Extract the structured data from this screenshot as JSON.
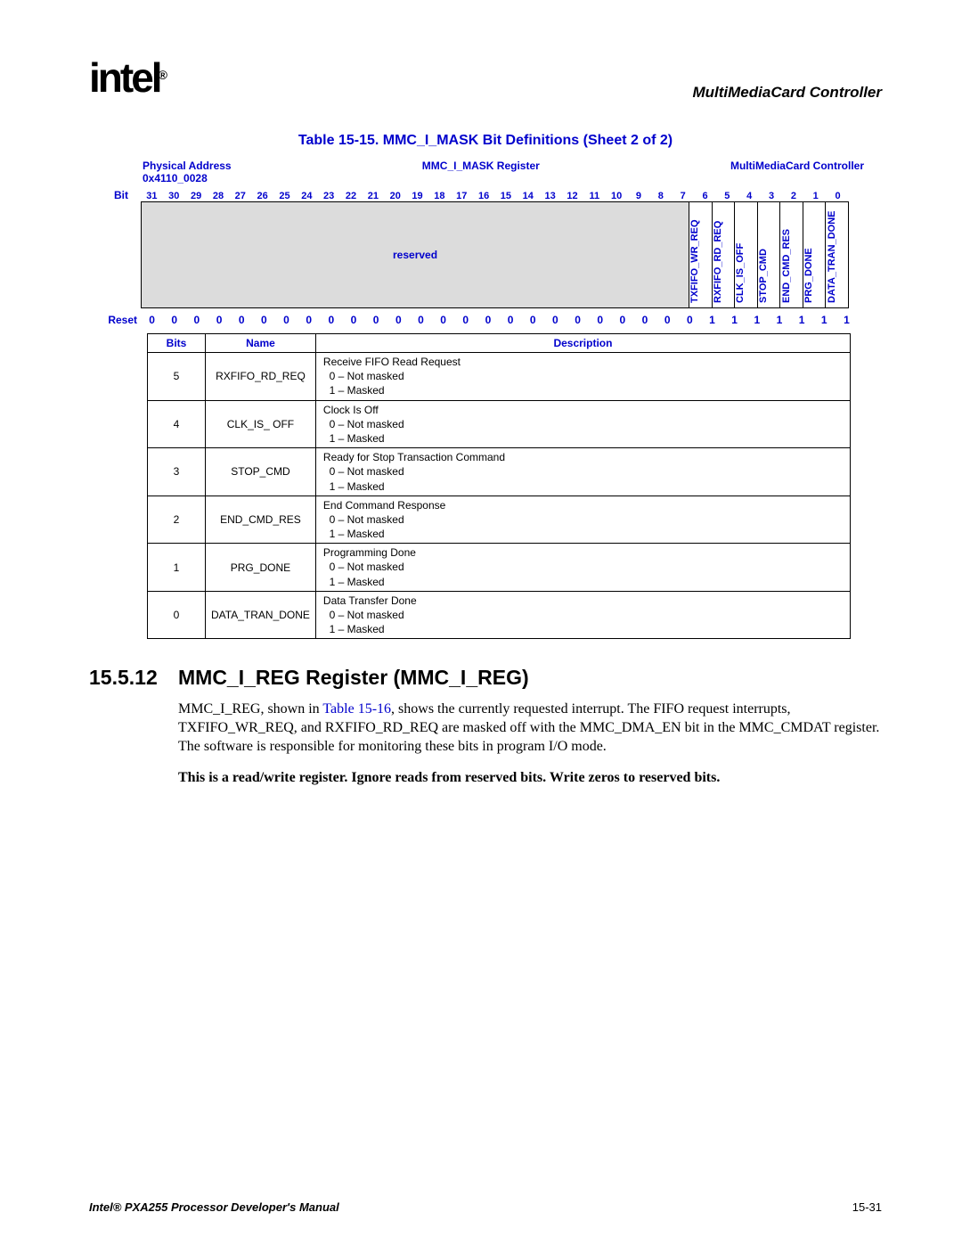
{
  "header": {
    "logo_text": "intel",
    "reg_mark": "®",
    "right_title": "MultiMediaCard Controller"
  },
  "table_title": "Table 15-15. MMC_I_MASK Bit Definitions (Sheet 2 of 2)",
  "reg_header": {
    "addr_label": "Physical Address",
    "addr_value": "0x4110_0028",
    "reg_name": "MMC_I_MASK Register",
    "controller": "MultiMediaCard Controller"
  },
  "bit_row_label": "Bit",
  "bit_numbers": [
    "31",
    "30",
    "29",
    "28",
    "27",
    "26",
    "25",
    "24",
    "23",
    "22",
    "21",
    "20",
    "19",
    "18",
    "17",
    "16",
    "15",
    "14",
    "13",
    "12",
    "11",
    "10",
    "9",
    "8",
    "7",
    "6",
    "5",
    "4",
    "3",
    "2",
    "1",
    "0"
  ],
  "reserved_label": "reserved",
  "named_bits": [
    "TXFIFO_WR_REQ",
    "RXFIFO_RD_REQ",
    "CLK_IS_OFF",
    "STOP_CMD",
    "END_CMD_RES",
    "PRG_DONE",
    "DATA_TRAN_DONE"
  ],
  "reset_label": "Reset",
  "reset_values": [
    "0",
    "0",
    "0",
    "0",
    "0",
    "0",
    "0",
    "0",
    "0",
    "0",
    "0",
    "0",
    "0",
    "0",
    "0",
    "0",
    "0",
    "0",
    "0",
    "0",
    "0",
    "0",
    "0",
    "0",
    "0",
    "1",
    "1",
    "1",
    "1",
    "1",
    "1",
    "1"
  ],
  "desc_headers": {
    "bits": "Bits",
    "name": "Name",
    "desc": "Description"
  },
  "desc_rows": [
    {
      "bit": "5",
      "name": "RXFIFO_RD_REQ",
      "title": "Receive FIFO Read Request",
      "l0": "0 –   Not masked",
      "l1": "1 –   Masked"
    },
    {
      "bit": "4",
      "name": "CLK_IS_ OFF",
      "title": "Clock Is Off",
      "l0": "0 –   Not masked",
      "l1": "1 –   Masked"
    },
    {
      "bit": "3",
      "name": "STOP_CMD",
      "title": "Ready for Stop Transaction Command",
      "l0": "0 –   Not masked",
      "l1": "1 –   Masked"
    },
    {
      "bit": "2",
      "name": "END_CMD_RES",
      "title": "End Command Response",
      "l0": "0 –   Not masked",
      "l1": "1 –   Masked"
    },
    {
      "bit": "1",
      "name": "PRG_DONE",
      "title": "Programming Done",
      "l0": "0 –   Not masked",
      "l1": "1 –   Masked"
    },
    {
      "bit": "0",
      "name": "DATA_TRAN_DONE",
      "title": "Data Transfer Done",
      "l0": "0 –   Not masked",
      "l1": "1 –   Masked"
    }
  ],
  "section": {
    "num": "15.5.12",
    "title": "MMC_I_REG Register (MMC_I_REG)"
  },
  "para1_a": "MMC_I_REG, shown in ",
  "para1_link": "Table 15-16",
  "para1_b": ", shows the currently requested interrupt. The FIFO request interrupts, TXFIFO_WR_REQ, and RXFIFO_RD_REQ are masked off with the MMC_DMA_EN bit in the MMC_CMDAT register. The software is responsible for monitoring these bits in program I/O mode.",
  "para2": "This is a read/write register. Ignore reads from reserved bits. Write zeros to reserved bits.",
  "footer": {
    "left": "Intel® PXA255 Processor Developer's Manual",
    "right": "15-31"
  }
}
